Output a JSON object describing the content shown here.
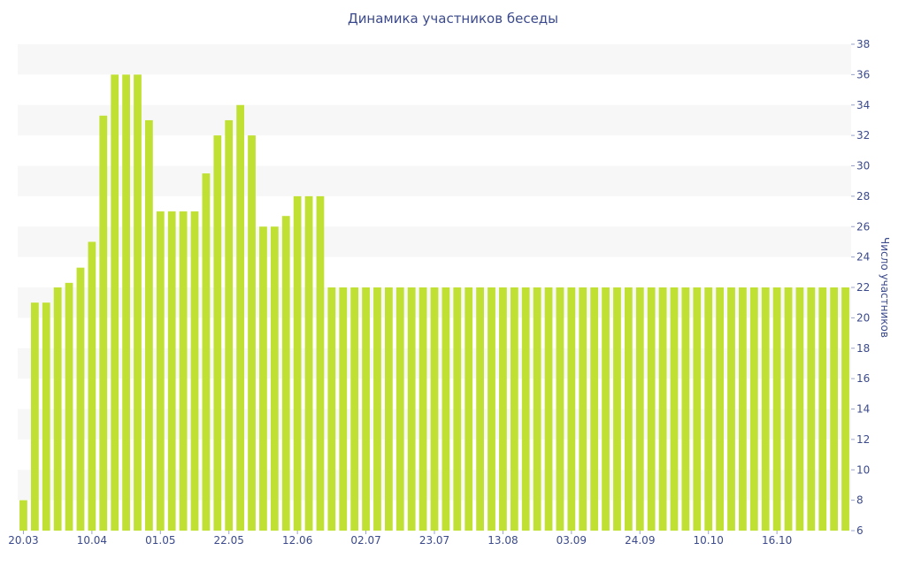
{
  "chart_data": {
    "type": "bar",
    "title": "Динамика участников беседы",
    "xlabel": "",
    "ylabel": "Число участников",
    "ylim": [
      6,
      38
    ],
    "yticks": [
      6,
      8,
      10,
      12,
      14,
      16,
      18,
      20,
      22,
      24,
      26,
      28,
      30,
      32,
      34,
      36,
      38
    ],
    "y_axis_side": "right",
    "grid": "horizontal alternating bands",
    "bar_color": "#c0e033",
    "band_color": "#f7f7f7",
    "text_color": "#3b4a8c",
    "x_tick_labels": [
      {
        "label": "20.03",
        "index": 0
      },
      {
        "label": "10.04",
        "index": 6
      },
      {
        "label": "01.05",
        "index": 12
      },
      {
        "label": "22.05",
        "index": 18
      },
      {
        "label": "12.06",
        "index": 24
      },
      {
        "label": "02.07",
        "index": 30
      },
      {
        "label": "23.07",
        "index": 36
      },
      {
        "label": "13.08",
        "index": 42
      },
      {
        "label": "03.09",
        "index": 48
      },
      {
        "label": "24.09",
        "index": 54
      },
      {
        "label": "10.10",
        "index": 60
      },
      {
        "label": "16.10",
        "index": 66
      }
    ],
    "values": [
      8,
      21,
      21,
      22,
      22.3,
      23.3,
      25,
      33.3,
      36,
      36,
      36,
      33,
      27,
      27,
      27,
      27,
      29.5,
      32,
      33,
      34,
      32,
      26,
      26,
      26.7,
      28,
      28,
      28,
      22,
      22,
      22,
      22,
      22,
      22,
      22,
      22,
      22,
      22,
      22,
      22,
      22,
      22,
      22,
      22,
      22,
      22,
      22,
      22,
      22,
      22,
      22,
      22,
      22,
      22,
      22,
      22,
      22,
      22,
      22,
      22,
      22,
      22,
      22,
      22,
      22,
      22,
      22,
      22,
      22,
      22,
      22,
      22,
      22,
      22
    ]
  }
}
